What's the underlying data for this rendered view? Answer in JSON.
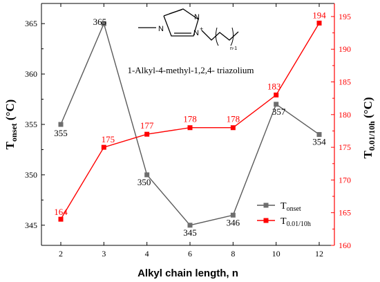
{
  "chart_data": {
    "type": "line",
    "x": [
      2,
      3,
      4,
      6,
      8,
      10,
      12
    ],
    "xlabel": "Alkyl chain length, n",
    "ylabel_left": {
      "main": "T",
      "sub": "onset",
      "unit": " (°C)"
    },
    "ylabel_right": {
      "main": "T",
      "sub": "0.01/10h",
      "unit": " (°C)"
    },
    "ylim_left": [
      343,
      367
    ],
    "ylim_right": [
      160,
      197
    ],
    "yticks_left": [
      345,
      350,
      355,
      360,
      365
    ],
    "yticks_right": [
      160,
      165,
      170,
      175,
      180,
      185,
      190,
      195
    ],
    "x_tick_labels": [
      "2",
      "3",
      "4",
      "6",
      "8",
      "10",
      "12"
    ],
    "series": [
      {
        "name_main": "T",
        "name_sub": "onset",
        "axis": "left",
        "color": "#5a5a5a",
        "marker_color": "#6e6e6e",
        "label_color": "#000000",
        "values": [
          355,
          365,
          350,
          345,
          346,
          357,
          354
        ],
        "labels": [
          "355",
          "365",
          "350",
          "345",
          "346",
          "357",
          "354"
        ]
      },
      {
        "name_main": "T",
        "name_sub": "0.01/10h",
        "axis": "right",
        "color": "#ff0000",
        "marker_color": "#ff0000",
        "label_color": "#ff0000",
        "values": [
          164,
          175,
          177,
          178,
          178,
          183,
          194
        ],
        "labels": [
          "164",
          "175",
          "177",
          "178",
          "178",
          "183",
          "194"
        ]
      }
    ],
    "legend_position": "bottom-right",
    "grid": false,
    "annotation": {
      "caption": "1-Alkyl-4-methyl-1,2,4- triazolium",
      "atoms": {
        "n1": "N",
        "n2": "N",
        "n3": "N",
        "plus": "+",
        "sub": "n-1"
      }
    }
  }
}
